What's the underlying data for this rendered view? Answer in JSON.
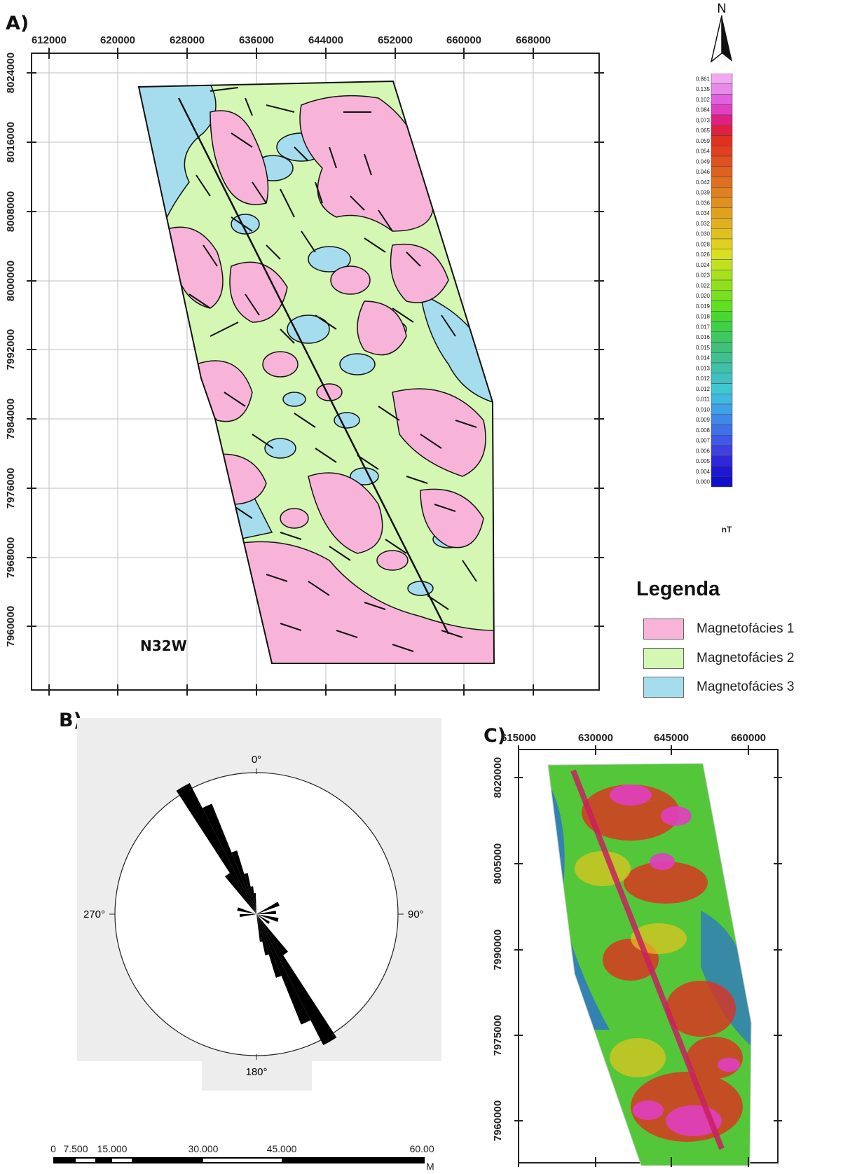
{
  "panel_a": {
    "label": "A)",
    "x_ticks": [
      "612000",
      "620000",
      "628000",
      "636000",
      "644000",
      "652000",
      "660000",
      "668000"
    ],
    "y_ticks": [
      "8024000",
      "8016000",
      "8008000",
      "8000000",
      "7992000",
      "7984000",
      "7976000",
      "7968000",
      "7960000"
    ],
    "direction_label": "N32W",
    "north_label": "N",
    "colorbar": {
      "values": [
        "0.861",
        "0.135",
        "0.102",
        "0.084",
        "0.073",
        "0.065",
        "0.059",
        "0.054",
        "0.049",
        "0.046",
        "0.042",
        "0.039",
        "0.036",
        "0.034",
        "0.032",
        "0.030",
        "0.028",
        "0.026",
        "0.024",
        "0.023",
        "0.022",
        "0.020",
        "0.019",
        "0.018",
        "0.017",
        "0.016",
        "0.015",
        "0.014",
        "0.013",
        "0.012",
        "0.012",
        "0.011",
        "0.010",
        "0.009",
        "0.008",
        "0.007",
        "0.006",
        "0.005",
        "0.004",
        "0.000"
      ],
      "unit": "nT"
    },
    "legend": {
      "title": "Legenda",
      "items": [
        {
          "label": "Magnetofácies 1",
          "color": "#f8b4d8"
        },
        {
          "label": "Magnetofácies 2",
          "color": "#d4f7b4"
        },
        {
          "label": "Magnetofácies 3",
          "color": "#a6ddee"
        }
      ]
    }
  },
  "panel_b": {
    "label": "B)",
    "angle_labels": {
      "top": "0°",
      "left": "270°",
      "right": "90°",
      "bottom": "180°"
    }
  },
  "panel_c": {
    "label": "C)",
    "x_ticks": [
      "615000",
      "630000",
      "645000",
      "660000"
    ],
    "y_ticks": [
      "8020000",
      "8005000",
      "7990000",
      "7975000",
      "7960000"
    ]
  },
  "scale_bar": {
    "labels": [
      "0",
      "7.500",
      "15.000",
      "30.000",
      "45.000",
      "60.000"
    ],
    "unit": "Metros"
  }
}
